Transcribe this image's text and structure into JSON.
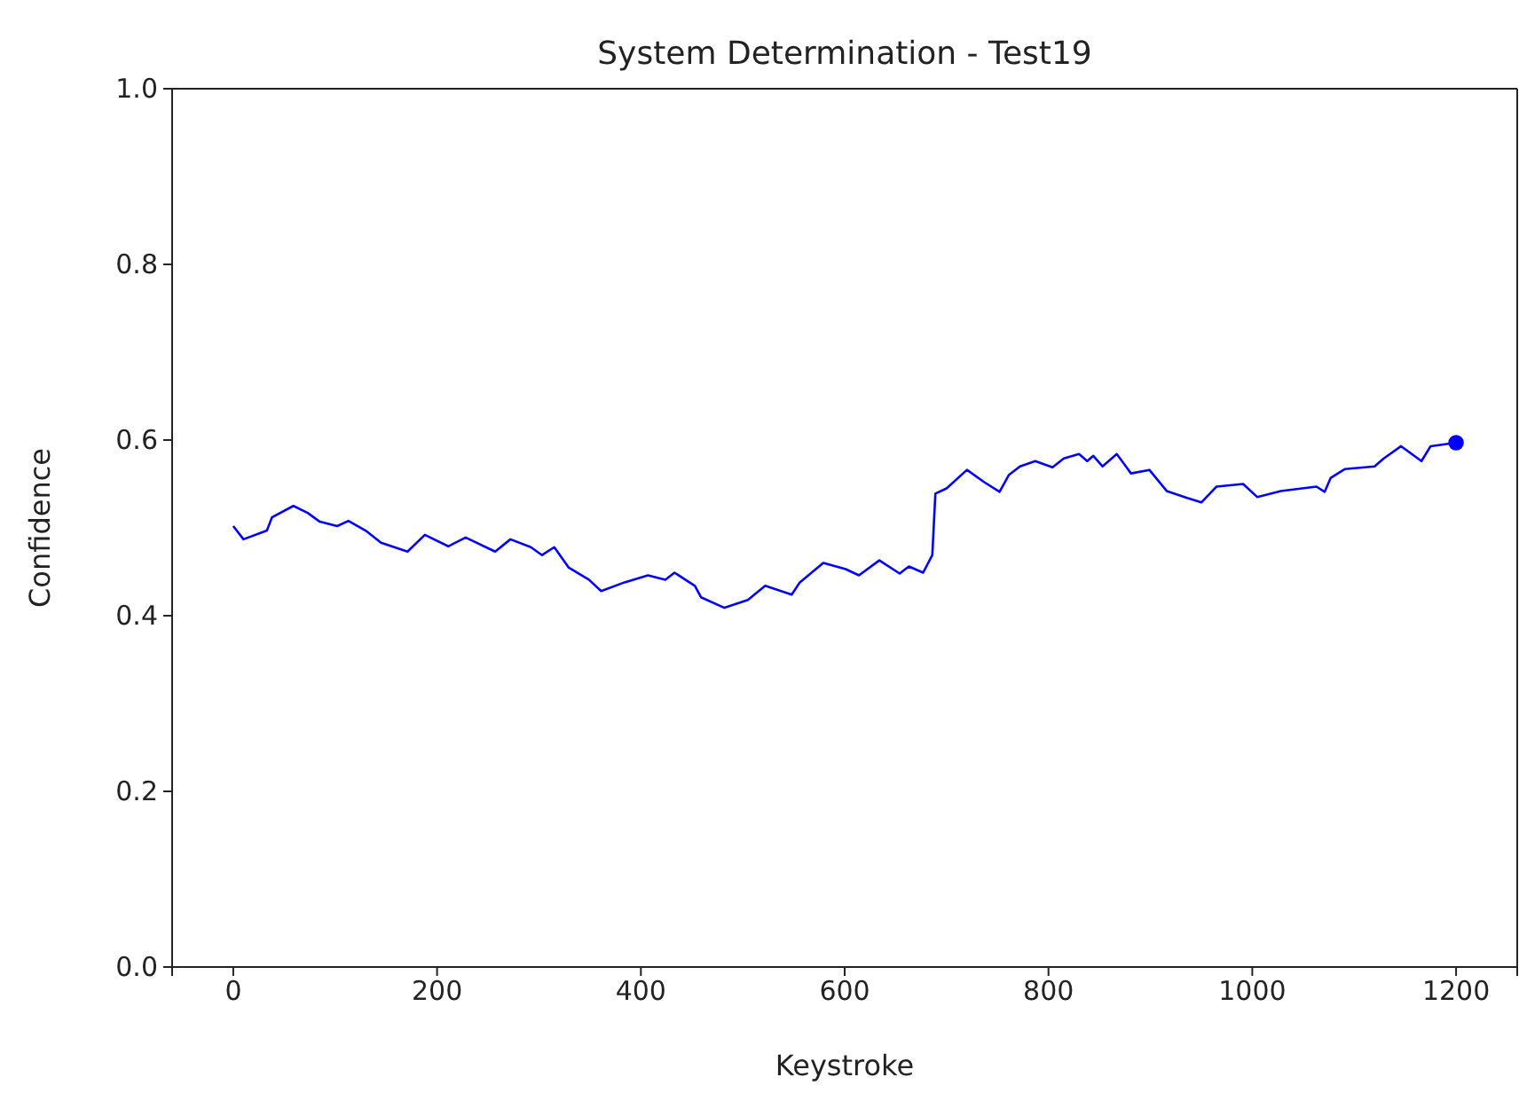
{
  "chart_data": {
    "type": "line",
    "title": "System Determination - Test19",
    "xlabel": "Keystroke",
    "ylabel": "Confidence",
    "xlim": [
      -60,
      1260
    ],
    "ylim": [
      0,
      1
    ],
    "xticks": [
      0,
      200,
      400,
      600,
      800,
      1000,
      1200
    ],
    "yticks": [
      {
        "value": 0,
        "label": "0.0"
      },
      {
        "value": 0.2,
        "label": "0.2"
      },
      {
        "value": 0.4,
        "label": "0.4"
      },
      {
        "value": 0.6,
        "label": "0.6"
      },
      {
        "value": 0.8,
        "label": "0.8"
      },
      {
        "value": 1,
        "label": "1.0"
      }
    ],
    "grid": false,
    "series": [
      {
        "color": "#0000ff",
        "marker": "none",
        "x": [
          0,
          10,
          33,
          38,
          59,
          73,
          85,
          102,
          113,
          131,
          145,
          171,
          188,
          211,
          228,
          257,
          272,
          292,
          303,
          315,
          329,
          349,
          361,
          384,
          407,
          424,
          433,
          453,
          459,
          482,
          505,
          522,
          548,
          556,
          579,
          601,
          614,
          634,
          654,
          663,
          677,
          686,
          689,
          700,
          720,
          737,
          752,
          761,
          772,
          787,
          804,
          815,
          830,
          838,
          844,
          853,
          867,
          881,
          899,
          916,
          936,
          950,
          965,
          991,
          1005,
          1028,
          1063,
          1071,
          1077,
          1091,
          1120,
          1129,
          1146,
          1166,
          1175,
          1200
        ],
        "values": [
          0.502,
          0.487,
          0.497,
          0.512,
          0.525,
          0.517,
          0.507,
          0.502,
          0.508,
          0.496,
          0.483,
          0.473,
          0.492,
          0.479,
          0.489,
          0.473,
          0.487,
          0.478,
          0.469,
          0.478,
          0.455,
          0.441,
          0.428,
          0.438,
          0.446,
          0.441,
          0.449,
          0.434,
          0.421,
          0.409,
          0.418,
          0.434,
          0.424,
          0.438,
          0.46,
          0.453,
          0.446,
          0.463,
          0.448,
          0.456,
          0.449,
          0.469,
          0.539,
          0.545,
          0.566,
          0.552,
          0.541,
          0.56,
          0.57,
          0.576,
          0.569,
          0.579,
          0.584,
          0.576,
          0.582,
          0.57,
          0.584,
          0.562,
          0.566,
          0.542,
          0.534,
          0.529,
          0.547,
          0.55,
          0.535,
          0.542,
          0.547,
          0.541,
          0.557,
          0.567,
          0.57,
          0.579,
          0.593,
          0.576,
          0.593,
          0.597
        ]
      },
      {
        "type": "scatter",
        "color": "#0000ff",
        "marker": "circle",
        "x": [
          1200
        ],
        "values": [
          0.597
        ]
      }
    ]
  }
}
